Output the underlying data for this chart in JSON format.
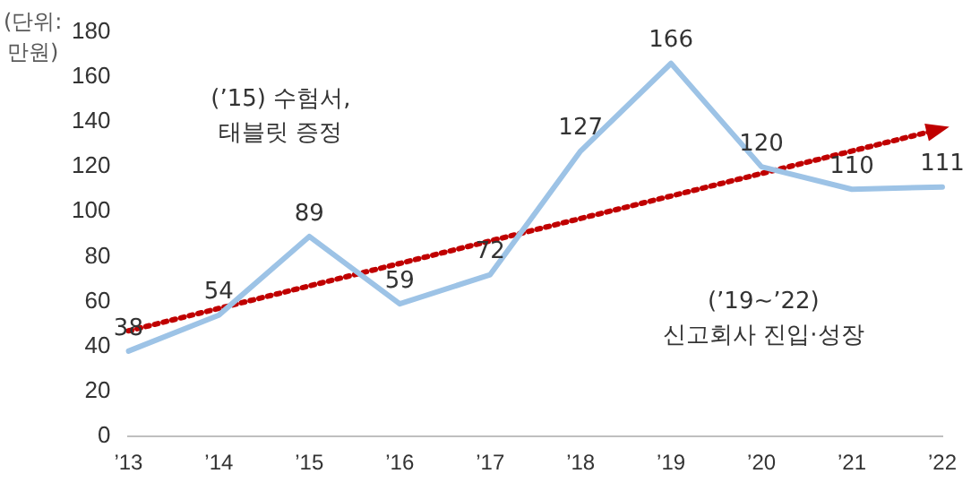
{
  "chart_data": {
    "type": "line",
    "ylabel": "(단위:\n만원)",
    "categories": [
      "’13",
      "’14",
      "’15",
      "’16",
      "’17",
      "’18",
      "’19",
      "’20",
      "’21",
      "’22"
    ],
    "series": [
      {
        "color": "#9dc3e6",
        "values": [
          38,
          54,
          89,
          59,
          72,
          127,
          166,
          120,
          110,
          111
        ],
        "value_labels": [
          "38",
          "54",
          "89",
          "59",
          "72",
          "127",
          "166",
          "120",
          "110",
          "111"
        ]
      },
      {
        "type": "line",
        "color": "#c00000",
        "line_style": "dotted",
        "x": [
          "’13",
          "’22"
        ],
        "values": [
          47,
          137
        ]
      }
    ],
    "ylim": [
      0,
      180
    ],
    "yticks": [
      0,
      20,
      40,
      60,
      80,
      100,
      120,
      140,
      160,
      180
    ],
    "grid": false,
    "legend": false,
    "annotations": [
      "(’15) 수험서,\n태블릿 증정",
      "(’19~’22)\n신고회사 진입·성장"
    ]
  }
}
